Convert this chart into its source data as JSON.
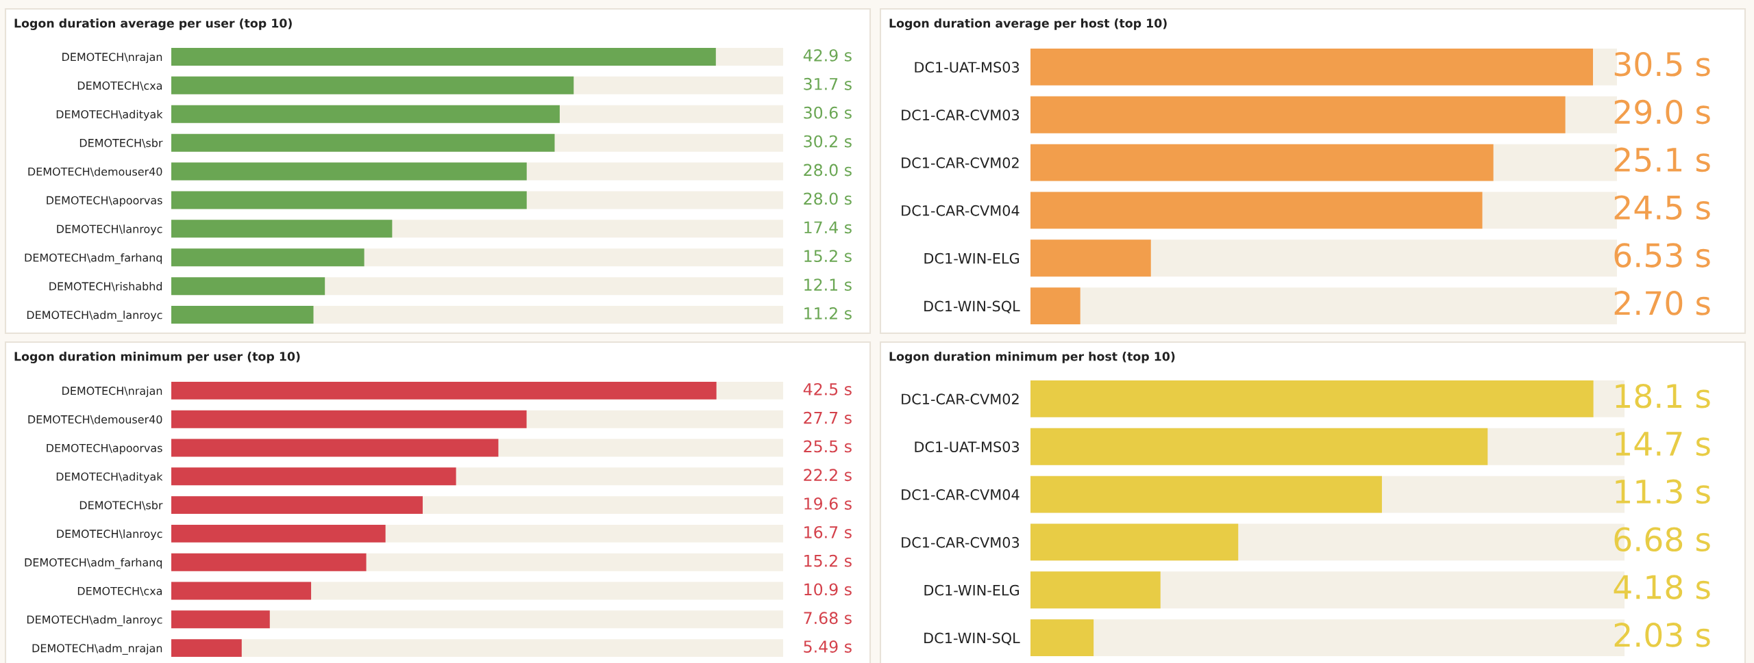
{
  "chart_data": [
    {
      "type": "bar",
      "orientation": "horizontal",
      "title": "Logon duration average per user (top 10)",
      "categories": [
        "DEMOTECH\\nrajan",
        "DEMOTECH\\cxa",
        "DEMOTECH\\adityak",
        "DEMOTECH\\sbr",
        "DEMOTECH\\demouser40",
        "DEMOTECH\\apoorvas",
        "DEMOTECH\\lanroyc",
        "DEMOTECH\\adm_farhanq",
        "DEMOTECH\\rishabhd",
        "DEMOTECH\\adm_lanroyc"
      ],
      "values": [
        42.9,
        31.7,
        30.6,
        30.2,
        28.0,
        28.0,
        17.4,
        15.2,
        12.1,
        11.2
      ],
      "value_labels": [
        "42.9 s",
        "31.7 s",
        "30.6 s",
        "30.2 s",
        "28.0 s",
        "28.0 s",
        "17.4 s",
        "15.2 s",
        "12.1 s",
        "11.2 s"
      ],
      "color": "#6aa653",
      "xlim": [
        0,
        48.2
      ],
      "tick_labels": "y"
    },
    {
      "type": "bar",
      "orientation": "horizontal",
      "title": "Logon duration average per host (top 10)",
      "categories": [
        "DC1-UAT-MS03",
        "DC1-CAR-CVM03",
        "DC1-CAR-CVM02",
        "DC1-CAR-CVM04",
        "DC1-WIN-ELG",
        "DC1-WIN-SQL"
      ],
      "values": [
        30.5,
        29.0,
        25.1,
        24.5,
        6.53,
        2.7
      ],
      "value_labels": [
        "30.5 s",
        "29.0 s",
        "25.1 s",
        "24.5 s",
        "6.53 s",
        "2.70 s"
      ],
      "color": "#f29e4c",
      "xlim": [
        0,
        31.8
      ],
      "tick_labels": "y"
    },
    {
      "type": "bar",
      "orientation": "horizontal",
      "title": "Logon duration minimum per user (top 10)",
      "categories": [
        "DEMOTECH\\nrajan",
        "DEMOTECH\\demouser40",
        "DEMOTECH\\apoorvas",
        "DEMOTECH\\adityak",
        "DEMOTECH\\sbr",
        "DEMOTECH\\lanroyc",
        "DEMOTECH\\adm_farhanq",
        "DEMOTECH\\cxa",
        "DEMOTECH\\adm_lanroyc",
        "DEMOTECH\\adm_nrajan"
      ],
      "values": [
        42.5,
        27.7,
        25.5,
        22.2,
        19.6,
        16.7,
        15.2,
        10.9,
        7.68,
        5.49
      ],
      "value_labels": [
        "42.5 s",
        "27.7 s",
        "25.5 s",
        "22.2 s",
        "19.6 s",
        "16.7 s",
        "15.2 s",
        "10.9 s",
        "7.68 s",
        "5.49 s"
      ],
      "color": "#d4414b",
      "xlim": [
        0,
        47.7
      ],
      "tick_labels": "y"
    },
    {
      "type": "bar",
      "orientation": "horizontal",
      "title": "Logon duration minimum per host (top 10)",
      "categories": [
        "DC1-CAR-CVM02",
        "DC1-UAT-MS03",
        "DC1-CAR-CVM04",
        "DC1-CAR-CVM03",
        "DC1-WIN-ELG",
        "DC1-WIN-SQL"
      ],
      "values": [
        18.1,
        14.7,
        11.3,
        6.68,
        4.18,
        2.03
      ],
      "value_labels": [
        "18.1 s",
        "14.7 s",
        "11.3 s",
        "6.68 s",
        "4.18 s",
        "2.03 s"
      ],
      "color": "#e8cc45",
      "xlim": [
        0,
        19.1
      ],
      "tick_labels": "y"
    }
  ]
}
